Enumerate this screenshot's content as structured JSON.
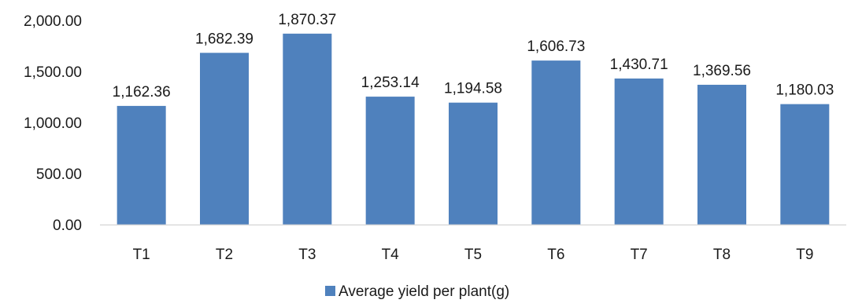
{
  "chart_data": {
    "type": "bar",
    "categories": [
      "T1",
      "T2",
      "T3",
      "T4",
      "T5",
      "T6",
      "T7",
      "T8",
      "T9"
    ],
    "series": [
      {
        "name": "Average yield per plant(g)",
        "values": [
          1162.36,
          1682.39,
          1870.37,
          1253.14,
          1194.58,
          1606.73,
          1430.71,
          1369.56,
          1180.03
        ],
        "labels": [
          "1,162.36",
          "1,682.39",
          "1,870.37",
          "1,253.14",
          "1,194.58",
          "1,606.73",
          "1,430.71",
          "1,369.56",
          "1,180.03"
        ],
        "color": "#4f81bd"
      }
    ],
    "yticks": [
      0,
      500,
      1000,
      1500,
      2000
    ],
    "ytick_labels": [
      "0.00",
      "500.00",
      "1,000.00",
      "1,500.00",
      "2,000.00"
    ],
    "ylim": [
      0,
      2000
    ],
    "grid": false,
    "legend_position": "bottom",
    "axis_color": "#d9d9d9"
  }
}
